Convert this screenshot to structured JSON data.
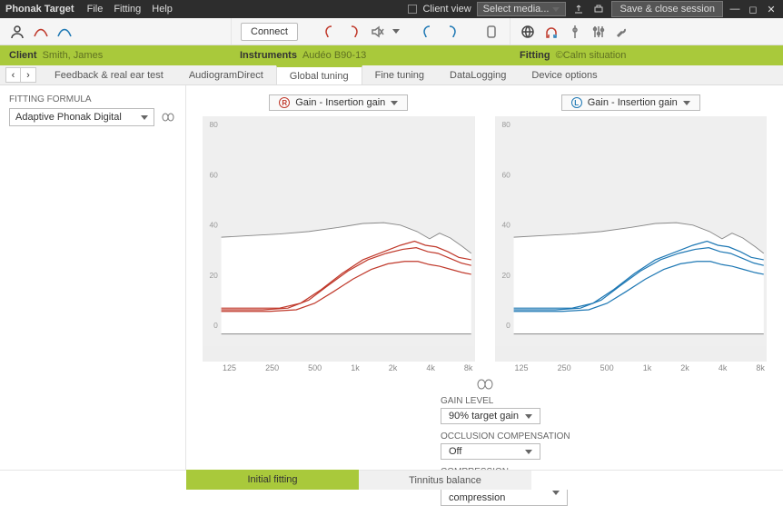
{
  "titlebar": {
    "app": "Phonak Target",
    "menus": [
      "File",
      "Fitting",
      "Help"
    ],
    "clientview": "Client view",
    "mediaSel": "Select media...",
    "save": "Save & close session"
  },
  "toolbar": {
    "connect": "Connect"
  },
  "sections": {
    "client": {
      "label": "Client",
      "value": "Smith, James"
    },
    "instruments": {
      "label": "Instruments",
      "value": "Audéo B90-13"
    },
    "fitting": {
      "label": "Fitting",
      "value": "©Calm situation"
    }
  },
  "tabs": [
    "Feedback & real ear test",
    "AudiogramDirect",
    "Global tuning",
    "Fine tuning",
    "DataLogging",
    "Device options"
  ],
  "activeTab": 2,
  "sidebar": {
    "formulaLabel": "FITTING FORMULA",
    "formulaValue": "Adaptive Phonak Digital"
  },
  "charts": {
    "left": {
      "label": "Gain - Insertion gain",
      "muted": "Muted",
      "color": "#c0392b",
      "accent": "#c0392b",
      "yTicks": [
        "80",
        "60",
        "40",
        "20",
        "0"
      ],
      "xTicks": [
        "125",
        "250",
        "500",
        "1k",
        "2k",
        "4k",
        "8k"
      ],
      "upperFill": "#e8e8e8",
      "background": "#efefef",
      "boundary": [
        [
          0,
          150
        ],
        [
          35,
          148
        ],
        [
          70,
          146
        ],
        [
          105,
          143
        ],
        [
          140,
          138
        ],
        [
          170,
          133
        ],
        [
          195,
          132
        ],
        [
          215,
          135
        ],
        [
          235,
          143
        ],
        [
          250,
          152
        ],
        [
          262,
          145
        ],
        [
          275,
          151
        ],
        [
          290,
          162
        ],
        [
          300,
          170
        ]
      ],
      "lines": [
        [
          [
            0,
            238
          ],
          [
            40,
            238
          ],
          [
            70,
            238
          ],
          [
            95,
            232
          ],
          [
            120,
            215
          ],
          [
            145,
            195
          ],
          [
            170,
            178
          ],
          [
            195,
            168
          ],
          [
            215,
            160
          ],
          [
            232,
            155
          ],
          [
            245,
            160
          ],
          [
            258,
            162
          ],
          [
            272,
            168
          ],
          [
            285,
            175
          ],
          [
            300,
            178
          ]
        ],
        [
          [
            0,
            240
          ],
          [
            50,
            240
          ],
          [
            80,
            238
          ],
          [
            105,
            228
          ],
          [
            128,
            210
          ],
          [
            152,
            192
          ],
          [
            176,
            178
          ],
          [
            198,
            170
          ],
          [
            218,
            165
          ],
          [
            234,
            163
          ],
          [
            248,
            168
          ],
          [
            260,
            170
          ],
          [
            274,
            176
          ],
          [
            288,
            182
          ],
          [
            300,
            185
          ]
        ],
        [
          [
            0,
            242
          ],
          [
            58,
            242
          ],
          [
            90,
            240
          ],
          [
            112,
            232
          ],
          [
            134,
            218
          ],
          [
            158,
            202
          ],
          [
            180,
            190
          ],
          [
            200,
            183
          ],
          [
            220,
            180
          ],
          [
            236,
            180
          ],
          [
            250,
            184
          ],
          [
            262,
            186
          ],
          [
            276,
            190
          ],
          [
            290,
            194
          ],
          [
            300,
            196
          ]
        ]
      ]
    },
    "right": {
      "label": "Gain - Insertion gain",
      "muted": "Muted",
      "color": "#1e78b4",
      "accent": "#1e78b4",
      "yTicks": [
        "80",
        "60",
        "40",
        "20",
        "0"
      ],
      "xTicks": [
        "125",
        "250",
        "500",
        "1k",
        "2k",
        "4k",
        "8k"
      ],
      "upperFill": "#e8e8e8",
      "background": "#efefef",
      "boundary": [
        [
          0,
          150
        ],
        [
          35,
          148
        ],
        [
          70,
          146
        ],
        [
          105,
          143
        ],
        [
          140,
          138
        ],
        [
          170,
          133
        ],
        [
          195,
          132
        ],
        [
          215,
          135
        ],
        [
          235,
          143
        ],
        [
          250,
          152
        ],
        [
          262,
          145
        ],
        [
          275,
          151
        ],
        [
          290,
          162
        ],
        [
          300,
          170
        ]
      ],
      "lines": [
        [
          [
            0,
            238
          ],
          [
            40,
            238
          ],
          [
            70,
            238
          ],
          [
            95,
            232
          ],
          [
            120,
            215
          ],
          [
            145,
            195
          ],
          [
            170,
            178
          ],
          [
            195,
            168
          ],
          [
            215,
            160
          ],
          [
            232,
            155
          ],
          [
            245,
            160
          ],
          [
            258,
            162
          ],
          [
            272,
            168
          ],
          [
            285,
            175
          ],
          [
            300,
            178
          ]
        ],
        [
          [
            0,
            240
          ],
          [
            50,
            240
          ],
          [
            80,
            238
          ],
          [
            105,
            228
          ],
          [
            128,
            210
          ],
          [
            152,
            192
          ],
          [
            176,
            178
          ],
          [
            198,
            170
          ],
          [
            218,
            165
          ],
          [
            234,
            163
          ],
          [
            248,
            168
          ],
          [
            260,
            170
          ],
          [
            274,
            176
          ],
          [
            288,
            182
          ],
          [
            300,
            185
          ]
        ],
        [
          [
            0,
            242
          ],
          [
            58,
            242
          ],
          [
            90,
            240
          ],
          [
            112,
            232
          ],
          [
            134,
            218
          ],
          [
            158,
            202
          ],
          [
            180,
            190
          ],
          [
            200,
            183
          ],
          [
            220,
            180
          ],
          [
            236,
            180
          ],
          [
            250,
            184
          ],
          [
            262,
            186
          ],
          [
            276,
            190
          ],
          [
            290,
            194
          ],
          [
            300,
            196
          ]
        ]
      ]
    }
  },
  "controls": {
    "gain": {
      "label": "GAIN LEVEL",
      "value": "90% target gain"
    },
    "occ": {
      "label": "OCCLUSION COMPENSATION",
      "value": "Off"
    },
    "comp": {
      "label": "COMPRESSION",
      "value": "Prescribed compression"
    }
  },
  "bottomTabs": [
    "Initial fitting",
    "Tinnitus balance"
  ],
  "bottomActive": 0,
  "colors": {
    "green": "#a9c93b",
    "red": "#c0392b",
    "blue": "#1e78b4",
    "grey": "#777"
  }
}
